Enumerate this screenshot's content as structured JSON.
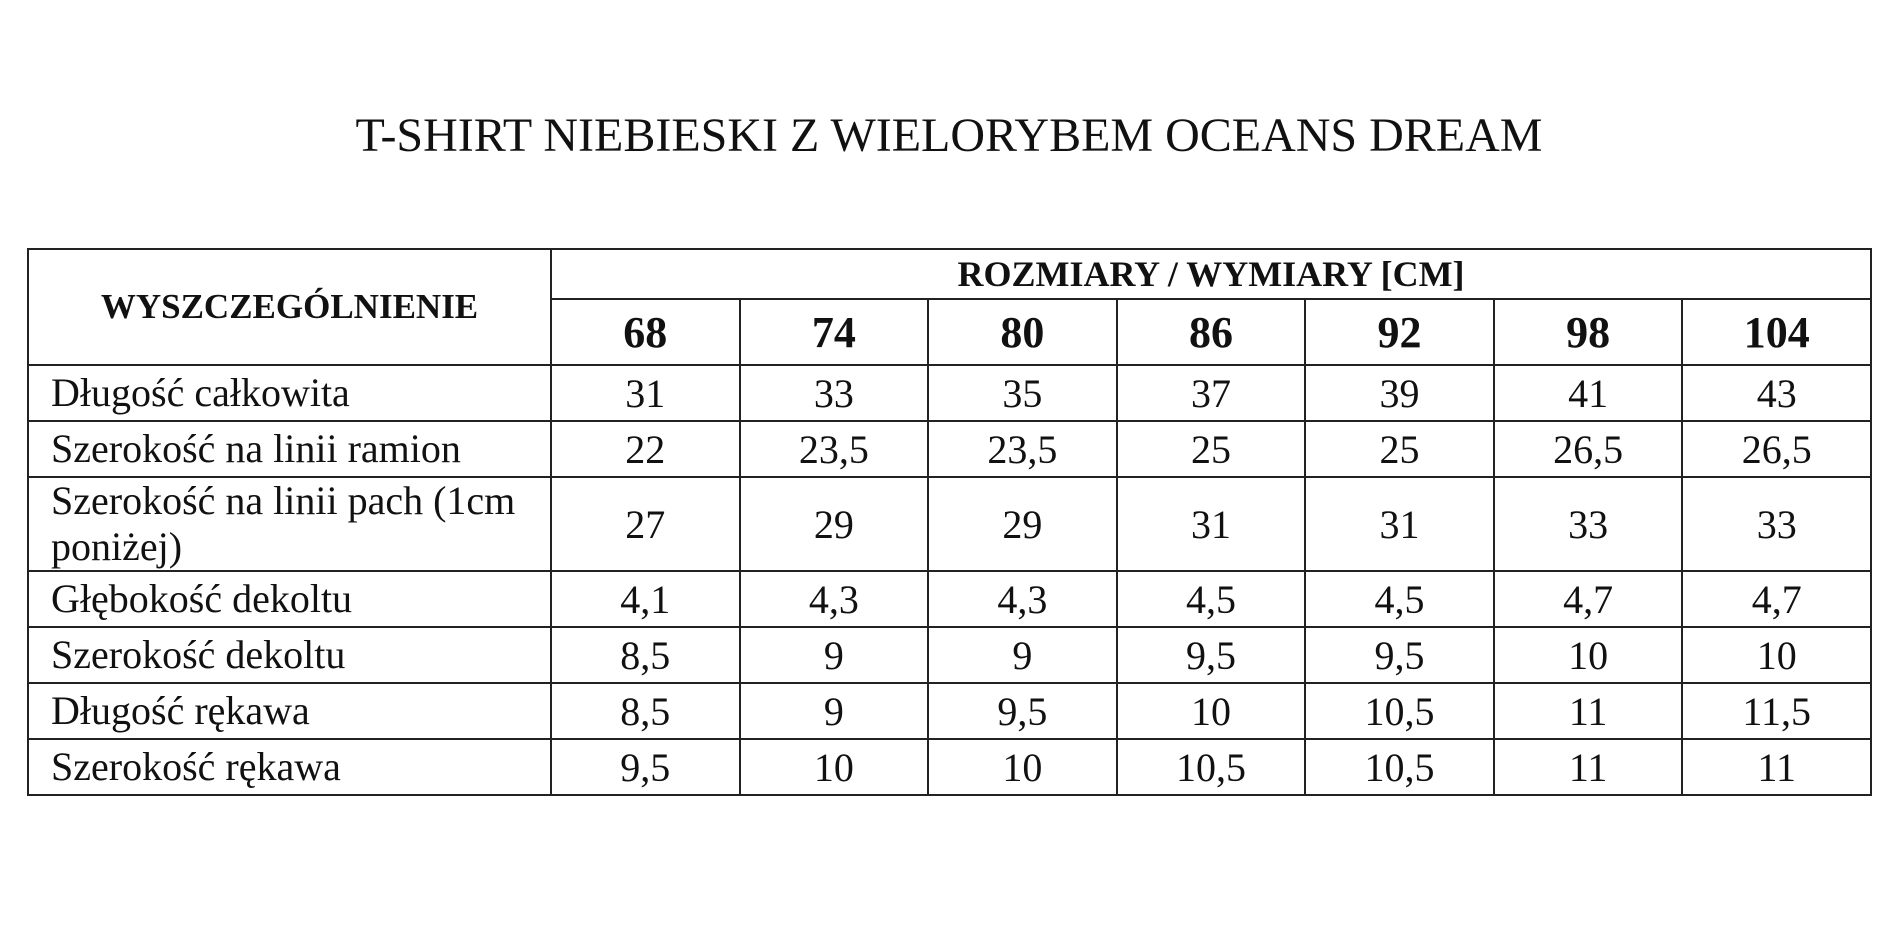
{
  "title": "T-SHIRT NIEBIESKI Z WIELORYBEM OCEANS DREAM",
  "table": {
    "corner": "WYSZCZEGÓLNIENIE",
    "group_header": "ROZMIARY / WYMIARY [CM]",
    "sizes": [
      "68",
      "74",
      "80",
      "86",
      "92",
      "98",
      "104"
    ],
    "rows": [
      [
        "Długość całkowita",
        "31",
        "33",
        "35",
        "37",
        "39",
        "41",
        "43"
      ],
      [
        "Szerokość na linii ramion",
        "22",
        "23,5",
        "23,5",
        "25",
        "25",
        "26,5",
        "26,5"
      ],
      [
        "Szerokość na linii pach (1cm poniżej)",
        "27",
        "29",
        "29",
        "31",
        "31",
        "33",
        "33"
      ],
      [
        "Głębokość dekoltu",
        "4,1",
        "4,3",
        "4,3",
        "4,5",
        "4,5",
        "4,7",
        "4,7"
      ],
      [
        "Szerokość dekoltu",
        "8,5",
        "9",
        "9",
        "9,5",
        "9,5",
        "10",
        "10"
      ],
      [
        "Długość rękawa",
        "8,5",
        "9",
        "9,5",
        "10",
        "10,5",
        "11",
        "11,5"
      ],
      [
        "Szerokość rękawa",
        "9,5",
        "10",
        "10",
        "10,5",
        "10,5",
        "11",
        "11"
      ]
    ]
  }
}
